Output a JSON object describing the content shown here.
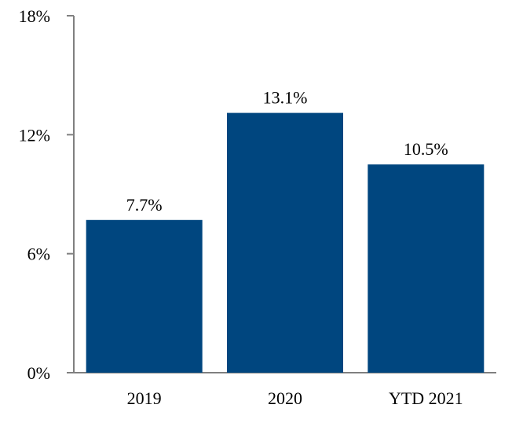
{
  "chart_data": {
    "type": "bar",
    "title": "",
    "xlabel": "",
    "ylabel": "",
    "categories": [
      "2019",
      "2020",
      "YTD 2021"
    ],
    "values": [
      7.7,
      13.1,
      10.5
    ],
    "data_labels": [
      "7.7%",
      "13.1%",
      "10.5%"
    ],
    "ylim": [
      0,
      18
    ],
    "yticks": [
      0,
      6,
      12,
      18
    ],
    "ytick_labels": [
      "0%",
      "6%",
      "12%",
      "18%"
    ],
    "grid": false,
    "legend": "none",
    "bar_color": "#00467F",
    "axis_color": "#808080"
  }
}
